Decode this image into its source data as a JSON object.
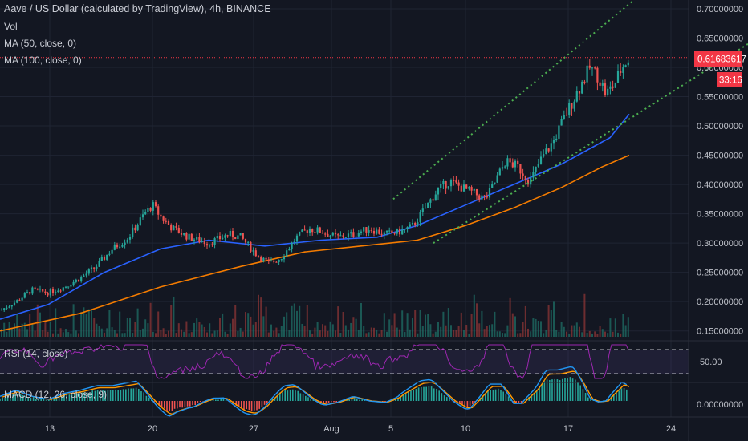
{
  "header": {
    "title": "Aave / US Dollar (calculated by TradingView), 4h, BINANCE",
    "indicators": [
      "Vol",
      "MA (50, close, 0)",
      "MA (100, close, 0)"
    ]
  },
  "price_badge": {
    "value": "0.61683617",
    "countdown": "33:16",
    "color": "#f23645"
  },
  "rsi": {
    "label": "RSI (14, close)",
    "level_label": "50.00"
  },
  "macd": {
    "label": "MACD (12, 26, close, 9)",
    "zero_label": "0.00000000"
  },
  "chart_data": {
    "type": "candlestick",
    "title": "Aave / US Dollar (calculated by TradingView), 4h, BINANCE",
    "y_ticks": [
      "0.70000000",
      "0.65000000",
      "0.60000000",
      "0.55000000",
      "0.50000000",
      "0.45000000",
      "0.40000000",
      "0.35000000",
      "0.30000000",
      "0.25000000",
      "0.20000000",
      "0.15000000"
    ],
    "x_ticks": [
      "13",
      "20",
      "27",
      "Aug",
      "5",
      "10",
      "17",
      "24"
    ],
    "ylim": [
      0.14,
      0.715
    ],
    "current_price": 0.61683617,
    "series": [
      {
        "name": "MA (50, close, 0)",
        "color": "#2962ff",
        "points": [
          [
            0,
            0.17
          ],
          [
            60,
            0.195
          ],
          [
            130,
            0.25
          ],
          [
            200,
            0.29
          ],
          [
            260,
            0.305
          ],
          [
            330,
            0.295
          ],
          [
            400,
            0.305
          ],
          [
            470,
            0.31
          ],
          [
            520,
            0.33
          ],
          [
            580,
            0.365
          ],
          [
            640,
            0.4
          ],
          [
            700,
            0.435
          ],
          [
            760,
            0.48
          ],
          [
            784,
            0.52
          ]
        ]
      },
      {
        "name": "MA (100, close, 0)",
        "color": "#f57c00",
        "points": [
          [
            0,
            0.15
          ],
          [
            100,
            0.18
          ],
          [
            200,
            0.225
          ],
          [
            300,
            0.26
          ],
          [
            380,
            0.285
          ],
          [
            450,
            0.295
          ],
          [
            520,
            0.305
          ],
          [
            580,
            0.33
          ],
          [
            640,
            0.36
          ],
          [
            700,
            0.395
          ],
          [
            750,
            0.43
          ],
          [
            784,
            0.45
          ]
        ]
      }
    ],
    "price_path": [
      [
        0,
        0.185
      ],
      [
        20,
        0.2
      ],
      [
        40,
        0.22
      ],
      [
        60,
        0.215
      ],
      [
        80,
        0.225
      ],
      [
        100,
        0.24
      ],
      [
        120,
        0.26
      ],
      [
        140,
        0.29
      ],
      [
        160,
        0.31
      ],
      [
        180,
        0.35
      ],
      [
        190,
        0.365
      ],
      [
        200,
        0.345
      ],
      [
        215,
        0.325
      ],
      [
        235,
        0.31
      ],
      [
        260,
        0.3
      ],
      [
        285,
        0.315
      ],
      [
        300,
        0.31
      ],
      [
        320,
        0.28
      ],
      [
        335,
        0.265
      ],
      [
        350,
        0.275
      ],
      [
        370,
        0.31
      ],
      [
        385,
        0.325
      ],
      [
        400,
        0.32
      ],
      [
        420,
        0.31
      ],
      [
        440,
        0.315
      ],
      [
        460,
        0.325
      ],
      [
        480,
        0.315
      ],
      [
        500,
        0.32
      ],
      [
        515,
        0.33
      ],
      [
        530,
        0.36
      ],
      [
        545,
        0.39
      ],
      [
        560,
        0.405
      ],
      [
        575,
        0.395
      ],
      [
        590,
        0.385
      ],
      [
        605,
        0.375
      ],
      [
        615,
        0.4
      ],
      [
        630,
        0.44
      ],
      [
        645,
        0.43
      ],
      [
        660,
        0.405
      ],
      [
        675,
        0.445
      ],
      [
        690,
        0.475
      ],
      [
        705,
        0.52
      ],
      [
        720,
        0.56
      ],
      [
        735,
        0.6
      ],
      [
        745,
        0.585
      ],
      [
        755,
        0.555
      ],
      [
        765,
        0.57
      ],
      [
        775,
        0.6
      ],
      [
        784,
        0.617
      ]
    ],
    "channel": {
      "upper": [
        [
          490,
          0.375
        ],
        [
          790,
          0.715
        ]
      ],
      "lower": [
        [
          540,
          0.3
        ],
        [
          932,
          0.64
        ]
      ],
      "color": "#4caf50"
    },
    "grid": true
  }
}
